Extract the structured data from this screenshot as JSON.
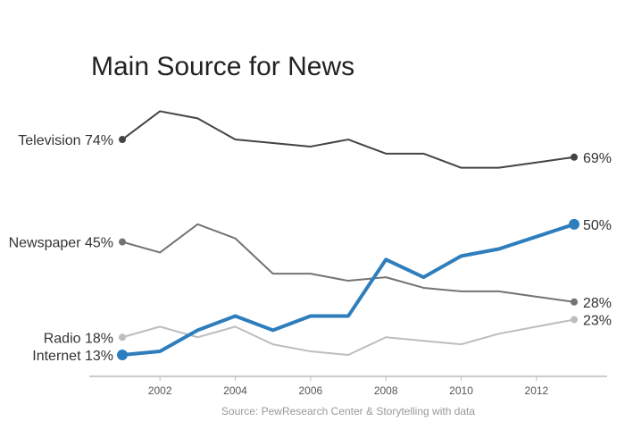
{
  "chart_data": {
    "type": "line",
    "title": "Main Source for News",
    "source": "Source: PewResearch Center & Storytelling with data",
    "x": [
      2001,
      2002,
      2003,
      2004,
      2005,
      2006,
      2007,
      2008,
      2009,
      2010,
      2011,
      2012,
      2013
    ],
    "xticks": [
      "2002",
      "2004",
      "2006",
      "2008",
      "2010",
      "2012"
    ],
    "xtick_values": [
      2002,
      2004,
      2006,
      2008,
      2010,
      2012
    ],
    "ylim": [
      13,
      82
    ],
    "grid": false,
    "series": [
      {
        "name": "Television",
        "start_label": "Television 74%",
        "end_label": "69%",
        "color": "#444444",
        "highlight": false,
        "values": [
          74,
          82,
          80,
          74,
          73,
          72,
          74,
          70,
          70,
          66,
          66,
          67.5,
          69
        ]
      },
      {
        "name": "Newspaper",
        "start_label": "Newspaper 45%",
        "end_label": "28%",
        "color": "#737373",
        "highlight": false,
        "values": [
          45,
          42,
          50,
          46,
          36,
          36,
          34,
          35,
          32,
          31,
          31,
          29.5,
          28
        ]
      },
      {
        "name": "Radio",
        "start_label": "Radio 18%",
        "end_label": "23%",
        "color": "#bdbdbd",
        "highlight": false,
        "values": [
          18,
          21,
          18,
          21,
          16,
          14,
          13,
          18,
          17,
          16,
          19,
          21,
          23
        ]
      },
      {
        "name": "Internet",
        "start_label": "Internet 13%",
        "end_label": "50%",
        "color": "#2e7ebd",
        "highlight": true,
        "values": [
          13,
          14,
          20,
          24,
          20,
          24,
          24,
          40,
          35,
          41,
          43,
          46.5,
          50
        ]
      }
    ]
  }
}
